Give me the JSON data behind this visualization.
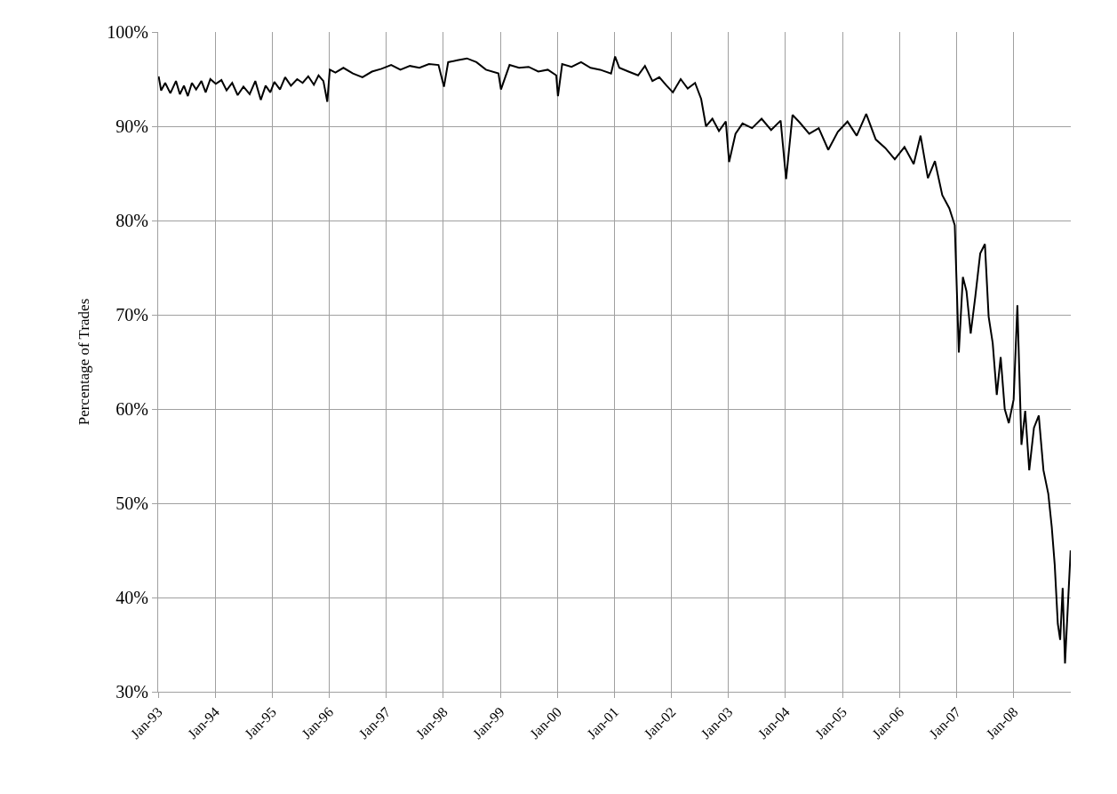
{
  "chart_data": {
    "type": "line",
    "ylabel": "Percentage of Trades",
    "x": [
      "1993-01-04",
      "1993-01-20",
      "1993-02-15",
      "1993-03-20",
      "1993-04-25",
      "1993-05-20",
      "1993-06-15",
      "1993-07-10",
      "1993-08-05",
      "1993-09-01",
      "1993-10-05",
      "1993-11-01",
      "1993-12-01",
      "1994-01-05",
      "1994-02-10",
      "1994-03-15",
      "1994-04-20",
      "1994-05-25",
      "1994-07-01",
      "1994-08-10",
      "1994-09-15",
      "1994-10-20",
      "1994-11-20",
      "1994-12-20",
      "1995-01-15",
      "1995-02-20",
      "1995-03-25",
      "1995-05-01",
      "1995-06-10",
      "1995-07-15",
      "1995-08-20",
      "1995-09-25",
      "1995-10-25",
      "1995-11-25",
      "1995-12-20",
      "1996-01-05",
      "1996-02-10",
      "1996-04-01",
      "1996-06-01",
      "1996-08-01",
      "1996-10-01",
      "1996-12-01",
      "1997-02-01",
      "1997-04-01",
      "1997-06-01",
      "1997-08-01",
      "1997-10-01",
      "1997-12-01",
      "1998-01-05",
      "1998-02-01",
      "1998-04-01",
      "1998-06-01",
      "1998-08-01",
      "1998-10-01",
      "1998-12-20",
      "1999-01-05",
      "1999-03-01",
      "1999-05-01",
      "1999-07-01",
      "1999-09-01",
      "1999-11-01",
      "1999-12-25",
      "2000-01-05",
      "2000-02-01",
      "2000-04-01",
      "2000-06-01",
      "2000-08-01",
      "2000-10-01",
      "2000-12-10",
      "2001-01-05",
      "2001-02-01",
      "2001-04-01",
      "2001-06-01",
      "2001-07-15",
      "2001-09-01",
      "2001-10-15",
      "2001-12-01",
      "2002-01-10",
      "2002-03-01",
      "2002-04-15",
      "2002-06-01",
      "2002-07-10",
      "2002-08-10",
      "2002-09-20",
      "2002-11-01",
      "2002-12-15",
      "2003-01-05",
      "2003-02-15",
      "2003-04-01",
      "2003-06-01",
      "2003-08-01",
      "2003-10-01",
      "2003-12-01",
      "2004-01-05",
      "2004-02-15",
      "2004-04-01",
      "2004-06-01",
      "2004-08-01",
      "2004-10-01",
      "2004-12-01",
      "2005-02-01",
      "2005-04-01",
      "2005-06-01",
      "2005-08-01",
      "2005-10-01",
      "2005-12-01",
      "2006-02-01",
      "2006-04-01",
      "2006-05-15",
      "2006-07-01",
      "2006-08-15",
      "2006-10-01",
      "2006-11-15",
      "2006-12-20",
      "2007-01-15",
      "2007-02-10",
      "2007-03-05",
      "2007-04-01",
      "2007-05-01",
      "2007-06-01",
      "2007-07-01",
      "2007-07-25",
      "2007-08-20",
      "2007-09-15",
      "2007-10-10",
      "2007-11-05",
      "2007-12-01",
      "2008-01-01",
      "2008-01-25",
      "2008-02-20",
      "2008-03-15",
      "2008-04-10",
      "2008-05-10",
      "2008-06-10",
      "2008-07-10",
      "2008-08-10",
      "2008-09-01",
      "2008-09-20",
      "2008-10-10",
      "2008-10-25",
      "2008-11-10",
      "2008-11-25",
      "2008-12-10",
      "2008-12-31"
    ],
    "values": [
      95.3,
      93.8,
      94.6,
      93.5,
      94.8,
      93.4,
      94.3,
      93.2,
      94.6,
      93.9,
      94.8,
      93.6,
      95.0,
      94.5,
      94.9,
      93.8,
      94.6,
      93.3,
      94.2,
      93.4,
      94.8,
      92.8,
      94.3,
      93.6,
      94.7,
      93.9,
      95.2,
      94.3,
      95.0,
      94.6,
      95.3,
      94.4,
      95.4,
      94.8,
      92.6,
      96.0,
      95.7,
      96.2,
      95.6,
      95.2,
      95.8,
      96.1,
      96.5,
      96.0,
      96.4,
      96.2,
      96.6,
      96.5,
      94.2,
      96.8,
      97.0,
      97.2,
      96.8,
      96.0,
      95.6,
      93.9,
      96.5,
      96.2,
      96.3,
      95.8,
      96.0,
      95.4,
      93.2,
      96.6,
      96.3,
      96.8,
      96.2,
      96.0,
      95.6,
      97.4,
      96.2,
      95.8,
      95.4,
      96.4,
      94.8,
      95.2,
      94.3,
      93.6,
      95.0,
      94.0,
      94.6,
      92.9,
      90.0,
      90.8,
      89.5,
      90.5,
      86.2,
      89.2,
      90.3,
      89.8,
      90.8,
      89.6,
      90.6,
      84.4,
      91.2,
      90.4,
      89.2,
      89.8,
      87.5,
      89.4,
      90.5,
      89.0,
      91.3,
      88.6,
      87.7,
      86.5,
      87.8,
      86.0,
      89.0,
      84.5,
      86.3,
      82.7,
      81.3,
      79.5,
      66.0,
      74.0,
      72.5,
      68.0,
      72.0,
      76.5,
      77.5,
      69.8,
      67.0,
      61.5,
      65.5,
      60.0,
      58.5,
      61.0,
      71.0,
      56.2,
      59.8,
      53.5,
      58.0,
      59.3,
      53.5,
      51.0,
      47.5,
      43.5,
      37.2,
      35.5,
      41.0,
      33.0,
      38.0,
      45.0
    ],
    "color": "#000000",
    "line_style": "solid",
    "marker": "none",
    "xlim": [
      "1993-01-01",
      "2009-01-01"
    ],
    "xticks": [
      {
        "value": "1993-01-01",
        "label": "Jan-93"
      },
      {
        "value": "1994-01-01",
        "label": "Jan-94"
      },
      {
        "value": "1995-01-01",
        "label": "Jan-95"
      },
      {
        "value": "1996-01-01",
        "label": "Jan-96"
      },
      {
        "value": "1997-01-01",
        "label": "Jan-97"
      },
      {
        "value": "1998-01-01",
        "label": "Jan-98"
      },
      {
        "value": "1999-01-01",
        "label": "Jan-99"
      },
      {
        "value": "2000-01-01",
        "label": "Jan-00"
      },
      {
        "value": "2001-01-01",
        "label": "Jan-01"
      },
      {
        "value": "2002-01-01",
        "label": "Jan-02"
      },
      {
        "value": "2003-01-01",
        "label": "Jan-03"
      },
      {
        "value": "2004-01-01",
        "label": "Jan-04"
      },
      {
        "value": "2005-01-01",
        "label": "Jan-05"
      },
      {
        "value": "2006-01-01",
        "label": "Jan-06"
      },
      {
        "value": "2007-01-01",
        "label": "Jan-07"
      },
      {
        "value": "2008-01-01",
        "label": "Jan-08"
      }
    ],
    "ylim": [
      30,
      100
    ],
    "yticks": [
      {
        "value": 30,
        "label": "30%"
      },
      {
        "value": 40,
        "label": "40%"
      },
      {
        "value": 50,
        "label": "50%"
      },
      {
        "value": 60,
        "label": "60%"
      },
      {
        "value": 70,
        "label": "70%"
      },
      {
        "value": 80,
        "label": "80%"
      },
      {
        "value": 90,
        "label": "90%"
      },
      {
        "value": 100,
        "label": "100%"
      }
    ],
    "grid": true,
    "legend": false
  }
}
